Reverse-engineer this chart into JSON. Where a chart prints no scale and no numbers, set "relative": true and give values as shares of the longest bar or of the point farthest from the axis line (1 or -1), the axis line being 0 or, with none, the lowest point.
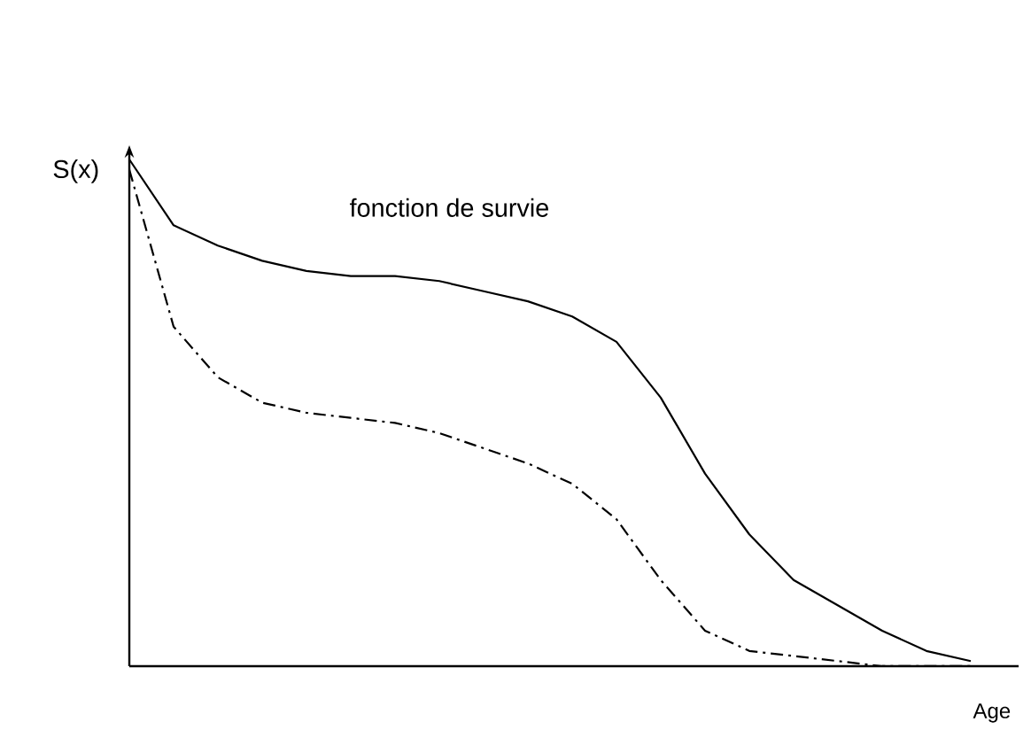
{
  "chart_data": {
    "type": "line",
    "title": "fonction de survie",
    "xlabel": "Age",
    "ylabel": "S(x)",
    "relative": true,
    "categories": [
      null,
      null,
      null,
      null,
      null,
      null,
      null,
      null,
      null,
      null,
      null,
      null,
      null,
      null,
      null,
      null,
      null,
      null,
      null,
      null
    ],
    "series": [
      {
        "color": "#000000",
        "line_style": "solid",
        "values": [
          1.0,
          0.87,
          0.83,
          0.8,
          0.78,
          0.77,
          0.77,
          0.76,
          0.74,
          0.72,
          0.69,
          0.64,
          0.53,
          0.38,
          0.26,
          0.17,
          0.12,
          0.07,
          0.03,
          0.01
        ]
      },
      {
        "color": "#000000",
        "line_style": "dashed",
        "values": [
          0.98,
          0.67,
          0.57,
          0.52,
          0.5,
          0.49,
          0.48,
          0.46,
          0.43,
          0.4,
          0.36,
          0.29,
          0.17,
          0.07,
          0.03,
          0.02,
          0.01,
          0.0,
          0.0,
          0.0
        ]
      }
    ]
  }
}
